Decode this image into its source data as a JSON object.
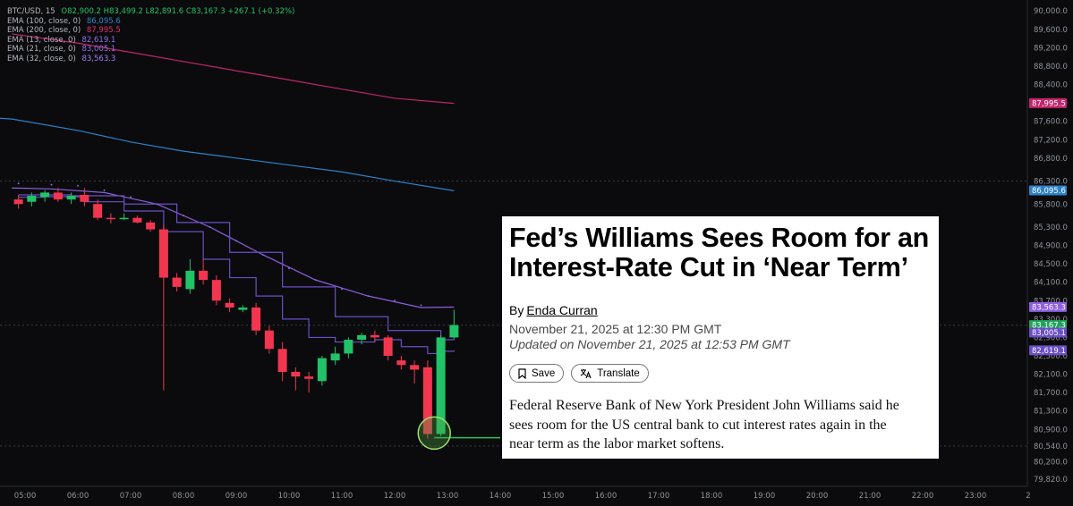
{
  "colors": {
    "background": "#0b0b0d",
    "bull": "#22c268",
    "bear": "#f23650",
    "ema100": "#2e82c7",
    "ema200": "#c2256a",
    "ema13": "#6a4fc6",
    "ema21": "#6a4fc6",
    "ema32": "#8e5fe0",
    "axis_text": "#8f939c",
    "level_line": "#22c55e"
  },
  "legend": {
    "symbol": "BTC/USD, 15",
    "ohlc": "O82,900.2 H83,499.2 L82,891.6 C83,167.3 +267.1 (+0.32%)",
    "ema100_label": "EMA (100, close, 0)",
    "ema100_value": "86,095.6",
    "ema200_label": "EMA (200, close, 0)",
    "ema200_value": "87,995.5",
    "ema13_label": "EMA (13, close, 0)",
    "ema13_value": "82,619.1",
    "ema21_label": "EMA (21, close, 0)",
    "ema21_value": "83,005.1",
    "ema32_label": "EMA (32, close, 0)",
    "ema32_value": "83,563.3"
  },
  "article": {
    "headline": "Fed’s Williams Sees Room for an Interest-Rate Cut in ‘Near Term’",
    "by": "By",
    "author": "Enda Curran",
    "date": "November 21, 2025 at 12:30 PM GMT",
    "updated": "Updated on November 21, 2025 at 12:53 PM GMT",
    "save_label": "Save",
    "translate_label": "Translate",
    "lede": "Federal Reserve Bank of New York President John Williams said he sees room for the US central bank to cut interest rates again in the near term as the labor market softens."
  },
  "chart_data": {
    "type": "candlestick",
    "symbol": "BTC/USD",
    "interval": "15",
    "ylim": [
      79720,
      90160
    ],
    "price_ticks": [
      90000,
      89600,
      89200,
      88800,
      88400,
      88000,
      87600,
      87200,
      86800,
      86300,
      85800,
      85300,
      84900,
      84500,
      84100,
      83700,
      83300,
      82900,
      82500,
      82100,
      81700,
      81300,
      80900,
      80540,
      80200,
      79820
    ],
    "price_tick_labels": [
      "90,000.0",
      "89,600.0",
      "89,200.0",
      "88,800.0",
      "88,400.0",
      "88,000.0",
      "87,600.0",
      "87,200.0",
      "86,800.0",
      "86,300.0",
      "85,800.0",
      "85,300.0",
      "84,900.0",
      "84,500.0",
      "84,100.0",
      "83,700.0",
      "83,300.0",
      "82,900.0",
      "82,500.0",
      "82,100.0",
      "81,700.0",
      "81,300.0",
      "80,900.0",
      "80,540.0",
      "80,200.0",
      "79,820.0"
    ],
    "time_labels": [
      "05:00",
      "06:00",
      "07:00",
      "08:00",
      "09:00",
      "10:00",
      "11:00",
      "12:00",
      "13:00",
      "14:00",
      "15:00",
      "16:00",
      "17:00",
      "18:00",
      "19:00",
      "20:00",
      "21:00",
      "22:00",
      "23:00",
      "2"
    ],
    "time_label_hours": [
      5,
      6,
      7,
      8,
      9,
      10,
      11,
      12,
      13,
      14,
      15,
      16,
      17,
      18,
      19,
      20,
      21,
      22,
      23,
      24
    ],
    "candles": [
      {
        "t": 4.875,
        "o": 85900,
        "h": 86000,
        "l": 85700,
        "c": 85800
      },
      {
        "t": 5.125,
        "o": 85850,
        "h": 86050,
        "l": 85750,
        "c": 85980
      },
      {
        "t": 5.375,
        "o": 85950,
        "h": 86100,
        "l": 85850,
        "c": 86050
      },
      {
        "t": 5.625,
        "o": 86050,
        "h": 86150,
        "l": 85850,
        "c": 85900
      },
      {
        "t": 5.875,
        "o": 85900,
        "h": 86050,
        "l": 85800,
        "c": 85980
      },
      {
        "t": 6.125,
        "o": 86000,
        "h": 86150,
        "l": 85750,
        "c": 85850
      },
      {
        "t": 6.375,
        "o": 85800,
        "h": 85900,
        "l": 85450,
        "c": 85500
      },
      {
        "t": 6.625,
        "o": 85500,
        "h": 85600,
        "l": 85380,
        "c": 85480
      },
      {
        "t": 6.875,
        "o": 85480,
        "h": 85600,
        "l": 85450,
        "c": 85500
      },
      {
        "t": 7.125,
        "o": 85500,
        "h": 85550,
        "l": 85380,
        "c": 85400
      },
      {
        "t": 7.375,
        "o": 85400,
        "h": 85450,
        "l": 85200,
        "c": 85250
      },
      {
        "t": 7.625,
        "o": 85250,
        "h": 85350,
        "l": 81750,
        "c": 84200
      },
      {
        "t": 7.875,
        "o": 84200,
        "h": 84300,
        "l": 83900,
        "c": 84000
      },
      {
        "t": 8.125,
        "o": 83950,
        "h": 84600,
        "l": 83850,
        "c": 84350
      },
      {
        "t": 8.375,
        "o": 84350,
        "h": 84600,
        "l": 84050,
        "c": 84150
      },
      {
        "t": 8.625,
        "o": 84150,
        "h": 84250,
        "l": 83600,
        "c": 83700
      },
      {
        "t": 8.875,
        "o": 83650,
        "h": 83750,
        "l": 83450,
        "c": 83550
      },
      {
        "t": 9.125,
        "o": 83500,
        "h": 83600,
        "l": 83450,
        "c": 83550
      },
      {
        "t": 9.375,
        "o": 83550,
        "h": 83650,
        "l": 82950,
        "c": 83050
      },
      {
        "t": 9.625,
        "o": 83050,
        "h": 83150,
        "l": 82550,
        "c": 82650
      },
      {
        "t": 9.875,
        "o": 82650,
        "h": 82800,
        "l": 81950,
        "c": 82150
      },
      {
        "t": 10.125,
        "o": 82150,
        "h": 82250,
        "l": 81750,
        "c": 82050
      },
      {
        "t": 10.375,
        "o": 82050,
        "h": 82150,
        "l": 81700,
        "c": 82000
      },
      {
        "t": 10.625,
        "o": 81950,
        "h": 82500,
        "l": 81850,
        "c": 82450
      },
      {
        "t": 10.875,
        "o": 82400,
        "h": 82700,
        "l": 82300,
        "c": 82550
      },
      {
        "t": 11.125,
        "o": 82550,
        "h": 82900,
        "l": 82450,
        "c": 82850
      },
      {
        "t": 11.375,
        "o": 82850,
        "h": 83000,
        "l": 82750,
        "c": 82950
      },
      {
        "t": 11.625,
        "o": 82950,
        "h": 83050,
        "l": 82800,
        "c": 82900
      },
      {
        "t": 11.875,
        "o": 82900,
        "h": 82950,
        "l": 82400,
        "c": 82500
      },
      {
        "t": 12.125,
        "o": 82400,
        "h": 82500,
        "l": 82200,
        "c": 82300
      },
      {
        "t": 12.375,
        "o": 82300,
        "h": 82400,
        "l": 81900,
        "c": 82200
      },
      {
        "t": 12.625,
        "o": 82250,
        "h": 82400,
        "l": 80700,
        "c": 80800
      },
      {
        "t": 12.875,
        "o": 80800,
        "h": 82950,
        "l": 80750,
        "c": 82900
      },
      {
        "t": 13.125,
        "o": 82900,
        "h": 83500,
        "l": 82890,
        "c": 83170
      }
    ],
    "ema200": [
      [
        4.75,
        89500
      ],
      [
        6,
        89300
      ],
      [
        7,
        89100
      ],
      [
        8,
        88900
      ],
      [
        9,
        88700
      ],
      [
        10,
        88500
      ],
      [
        11,
        88300
      ],
      [
        12,
        88100
      ],
      [
        13.125,
        87990
      ]
    ],
    "ema100": [
      [
        0,
        88000
      ],
      [
        4.75,
        87650
      ],
      [
        6,
        87400
      ],
      [
        7,
        87150
      ],
      [
        8,
        86950
      ],
      [
        9,
        86800
      ],
      [
        10,
        86650
      ],
      [
        11,
        86500
      ],
      [
        12,
        86300
      ],
      [
        13.125,
        86090
      ]
    ],
    "ema32": [
      [
        4.75,
        86150
      ],
      [
        5.5,
        86130
      ],
      [
        6.5,
        86050
      ],
      [
        7.5,
        85800
      ],
      [
        8.5,
        85300
      ],
      [
        9.5,
        84700
      ],
      [
        10.5,
        84150
      ],
      [
        11.5,
        83800
      ],
      [
        12.5,
        83550
      ],
      [
        13.125,
        83560
      ]
    ],
    "ema21": [
      [
        4.875,
        86000
      ],
      [
        5.875,
        85980
      ],
      [
        6.875,
        85800
      ],
      [
        7.875,
        85400
      ],
      [
        8.875,
        84750
      ],
      [
        9.875,
        84000
      ],
      [
        10.875,
        83350
      ],
      [
        11.875,
        83050
      ],
      [
        12.875,
        82850
      ],
      [
        13.125,
        83000
      ]
    ],
    "ema13": [
      [
        4.875,
        85950
      ],
      [
        5.375,
        85960
      ],
      [
        6.125,
        85850
      ],
      [
        6.875,
        85650
      ],
      [
        7.625,
        85200
      ],
      [
        8.375,
        84600
      ],
      [
        8.875,
        84200
      ],
      [
        9.375,
        83800
      ],
      [
        9.875,
        83300
      ],
      [
        10.375,
        82900
      ],
      [
        10.875,
        82800
      ],
      [
        11.625,
        82850
      ],
      [
        12.125,
        82700
      ],
      [
        12.625,
        82550
      ],
      [
        12.875,
        82600
      ],
      [
        13.125,
        82620
      ]
    ],
    "dots_ema": [
      [
        4.875,
        86250
      ],
      [
        5.5,
        86220
      ],
      [
        6,
        86200
      ],
      [
        6.5,
        86100
      ],
      [
        7,
        85950
      ],
      [
        7.5,
        85800
      ],
      [
        8,
        85550
      ],
      [
        8.5,
        85300
      ],
      [
        9,
        85000
      ],
      [
        9.5,
        84700
      ],
      [
        10,
        84400
      ],
      [
        10.5,
        84150
      ],
      [
        11,
        83950
      ],
      [
        11.5,
        83800
      ],
      [
        12,
        83700
      ],
      [
        12.5,
        83600
      ]
    ],
    "price_level": 80540,
    "level_line_end_hour": 14.0,
    "circle_center": [
      12.75,
      80820
    ],
    "badges": [
      {
        "value": 87995.5,
        "label": "87,995.5",
        "color": "#c2256a"
      },
      {
        "value": 86095.6,
        "label": "86,095.6",
        "color": "#2e82c7"
      },
      {
        "value": 83563.3,
        "label": "83,563.3",
        "color": "#8e5fe0"
      },
      {
        "value": 83167.3,
        "label": "83,167.3",
        "color": "#1fa35c"
      },
      {
        "value": 83005.1,
        "label": "83,005.1",
        "color": "#6a4fc6"
      },
      {
        "value": 82619.1,
        "label": "82,619.1",
        "color": "#6a4fc6"
      }
    ],
    "grid": true
  }
}
